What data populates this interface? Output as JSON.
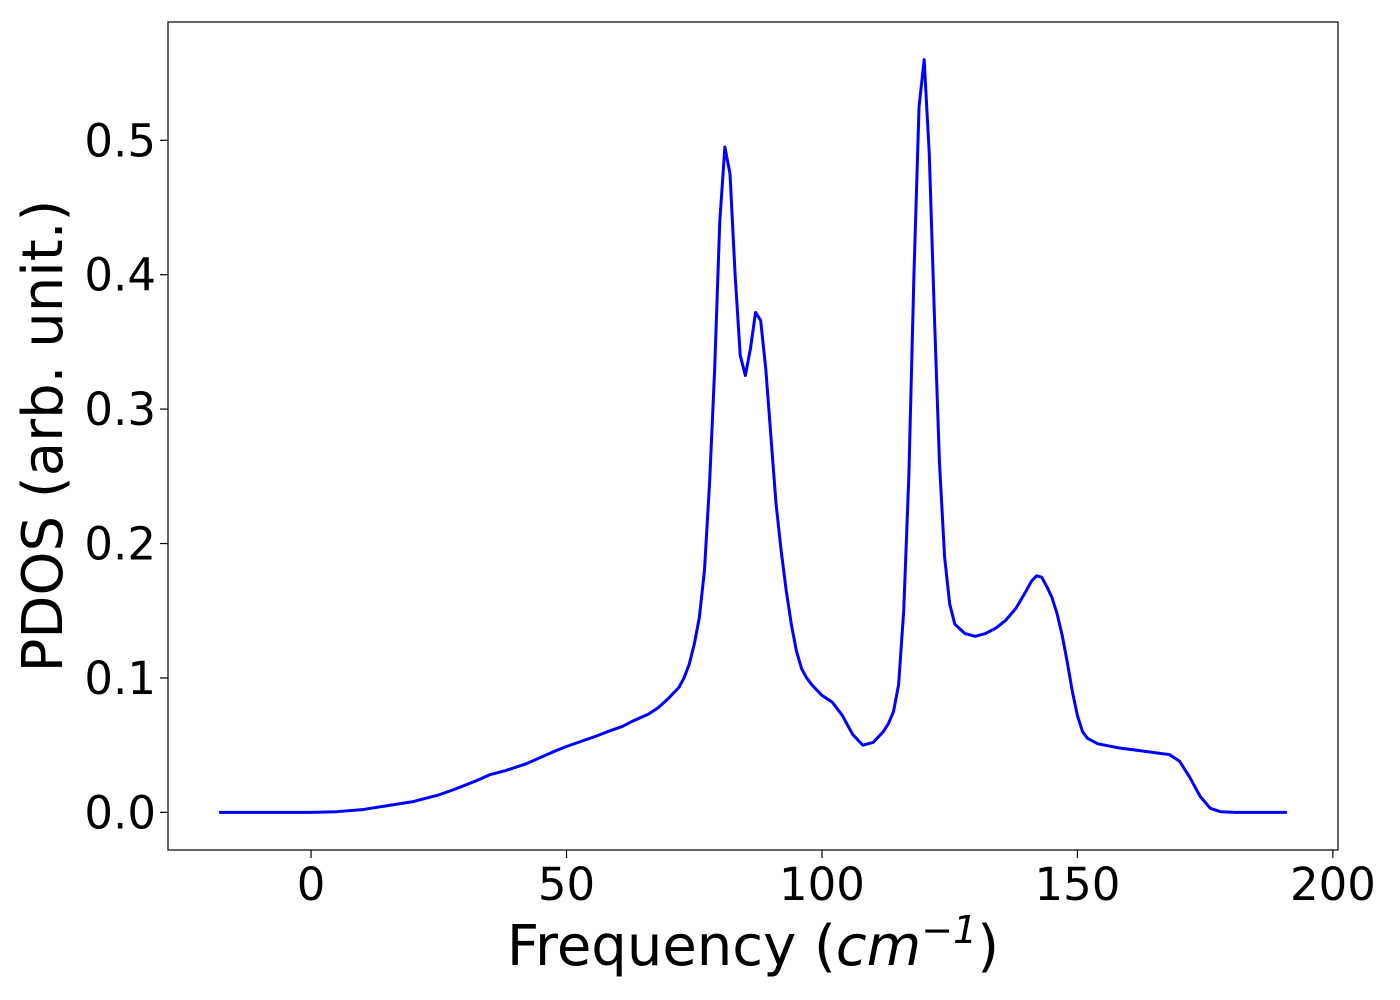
{
  "chart_data": {
    "type": "line",
    "title": "",
    "xlabel": "Frequency",
    "xlabel_unit_base": "cm",
    "xlabel_unit_exp": "−1",
    "ylabel": "PDOS (arb. unit.)",
    "xlim": [
      -28,
      201
    ],
    "ylim": [
      -0.028,
      0.588
    ],
    "xticks": [
      0,
      50,
      100,
      150,
      200
    ],
    "xtick_labels": [
      "0",
      "50",
      "100",
      "150",
      "200"
    ],
    "yticks": [
      0.0,
      0.1,
      0.2,
      0.3,
      0.4,
      0.5
    ],
    "ytick_labels": [
      "0.0",
      "0.1",
      "0.2",
      "0.3",
      "0.4",
      "0.5"
    ],
    "grid": false,
    "legend": "none",
    "series": [
      {
        "color": "#0000ff",
        "x": [
          -18,
          -10,
          0,
          5,
          10,
          15,
          20,
          25,
          28,
          32,
          35,
          38,
          42,
          45,
          48,
          50,
          53,
          56,
          58,
          61,
          63,
          66,
          68,
          70,
          72,
          73,
          74,
          75,
          76,
          77,
          78,
          79,
          80,
          81,
          82,
          83,
          84,
          85,
          86,
          87,
          88,
          89,
          90,
          91,
          92,
          93,
          94,
          95,
          96,
          97,
          98,
          100,
          102,
          104,
          106,
          108,
          110,
          112,
          113,
          114,
          115,
          116,
          117,
          118,
          119,
          120,
          121,
          122,
          123,
          124,
          125,
          126,
          128,
          130,
          132,
          134,
          136,
          138,
          140,
          141,
          142,
          143,
          144,
          145,
          146,
          147,
          148,
          149,
          150,
          151,
          152,
          154,
          158,
          162,
          166,
          168,
          170,
          172,
          174,
          176,
          178,
          181,
          186,
          191
        ],
        "y": [
          0.0,
          0.0,
          0.0,
          0.0005,
          0.002,
          0.005,
          0.008,
          0.013,
          0.017,
          0.023,
          0.028,
          0.031,
          0.036,
          0.041,
          0.046,
          0.049,
          0.053,
          0.057,
          0.06,
          0.064,
          0.068,
          0.073,
          0.078,
          0.085,
          0.093,
          0.1,
          0.11,
          0.125,
          0.145,
          0.18,
          0.245,
          0.33,
          0.44,
          0.495,
          0.475,
          0.4,
          0.34,
          0.325,
          0.345,
          0.372,
          0.366,
          0.33,
          0.28,
          0.23,
          0.195,
          0.165,
          0.14,
          0.12,
          0.107,
          0.1,
          0.095,
          0.087,
          0.082,
          0.072,
          0.058,
          0.05,
          0.052,
          0.06,
          0.066,
          0.075,
          0.095,
          0.15,
          0.25,
          0.4,
          0.525,
          0.56,
          0.49,
          0.37,
          0.26,
          0.19,
          0.155,
          0.14,
          0.133,
          0.131,
          0.133,
          0.137,
          0.143,
          0.152,
          0.165,
          0.172,
          0.176,
          0.175,
          0.168,
          0.16,
          0.148,
          0.132,
          0.112,
          0.09,
          0.072,
          0.06,
          0.055,
          0.051,
          0.048,
          0.046,
          0.044,
          0.043,
          0.038,
          0.026,
          0.012,
          0.003,
          0.0005,
          0.0,
          0.0,
          0.0
        ]
      }
    ]
  }
}
